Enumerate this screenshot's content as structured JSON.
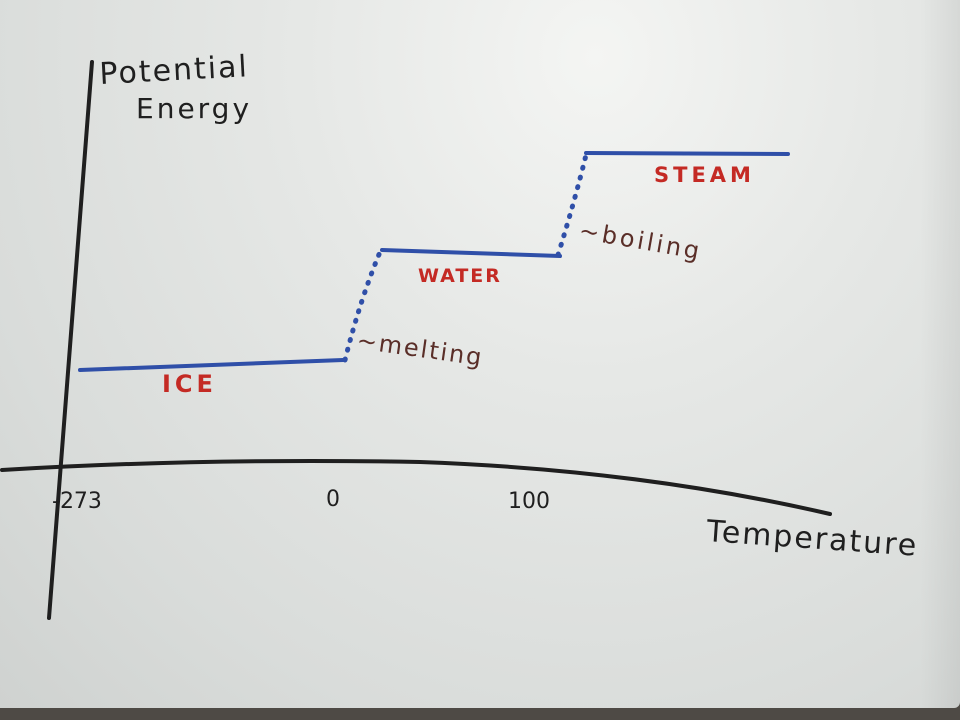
{
  "axes": {
    "y_label_line1": "Potential",
    "y_label_line2": "Energy",
    "x_label": "Temperature",
    "x_ticks": [
      "-273",
      "0",
      "100"
    ]
  },
  "phases": {
    "ice": "ICE",
    "water": "WATER",
    "steam": "STEAM"
  },
  "transitions": {
    "melting": "~melting",
    "boiling": "~boiling"
  },
  "colors": {
    "curve": "#2f4fa8",
    "phase_labels": "#c42a24",
    "transition_labels": "#5a2e28",
    "axes": "#1f1f1f"
  }
}
